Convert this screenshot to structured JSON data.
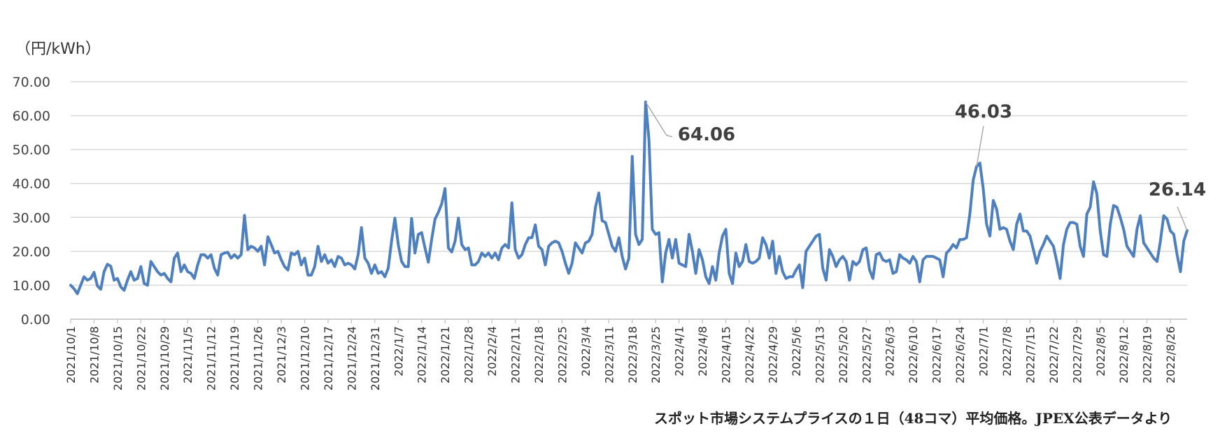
{
  "chart_data": {
    "type": "line",
    "title": "",
    "ylabel": "（円/kWh）",
    "xlabel": "",
    "ylim": [
      0,
      70
    ],
    "y_ticks": [
      "0.00",
      "10.00",
      "20.00",
      "30.00",
      "40.00",
      "50.00",
      "60.00",
      "70.00"
    ],
    "grid": true,
    "line_color": "#4e7fbf",
    "x_tick_labels": [
      "2021/10/1",
      "2021/10/8",
      "2021/10/15",
      "2021/10/22",
      "2021/10/29",
      "2021/11/5",
      "2021/11/12",
      "2021/11/19",
      "2021/11/26",
      "2021/12/3",
      "2021/12/10",
      "2021/12/17",
      "2021/12/24",
      "2021/12/31",
      "2022/1/7",
      "2022/1/14",
      "2022/1/21",
      "2022/1/28",
      "2022/2/4",
      "2022/2/11",
      "2022/2/18",
      "2022/2/25",
      "2022/3/4",
      "2022/3/11",
      "2022/3/18",
      "2022/3/25",
      "2022/4/1",
      "2022/4/8",
      "2022/4/15",
      "2022/4/22",
      "2022/4/29",
      "2022/5/6",
      "2022/5/13",
      "2022/5/20",
      "2022/5/27",
      "2022/6/3",
      "2022/6/10",
      "2022/6/17",
      "2022/6/24",
      "2022/7/1",
      "2022/7/8",
      "2022/7/15",
      "2022/7/22",
      "2022/7/29",
      "2022/8/5",
      "2022/8/12",
      "2022/8/19",
      "2022/8/26"
    ],
    "series": [
      {
        "start": "2021/10/1",
        "values": [
          10.0,
          9.0,
          7.5,
          10.0,
          12.5,
          11.5,
          12.0,
          13.8,
          9.8,
          8.8,
          14.0,
          16.2,
          15.6,
          11.5,
          12.0,
          9.5,
          8.5,
          11.5,
          14.0,
          11.5,
          12.0,
          15.5,
          10.5,
          10.0,
          17.0,
          15.5,
          14.0,
          13.0,
          13.5,
          12.0,
          11.0,
          18.0,
          19.5,
          14.0,
          16.0,
          14.0,
          13.5,
          12.0,
          16.0,
          19.0,
          19.0,
          18.0,
          19.0,
          15.0,
          13.0,
          19.0,
          19.5,
          19.7,
          18.0,
          19.0,
          18.0,
          19.0,
          30.6,
          20.5,
          21.5,
          21.0,
          20.0,
          21.5,
          16.0,
          24.3,
          22.0,
          19.5,
          20.0,
          17.5,
          15.5,
          14.5,
          19.5,
          19.0,
          20.0,
          16.0,
          18.0,
          13.0,
          13.0,
          15.5,
          21.5,
          17.0,
          19.0,
          16.5,
          17.5,
          15.5,
          18.5,
          18.0,
          16.0,
          16.5,
          16.0,
          14.8,
          19.0,
          27.0,
          18.0,
          16.5,
          13.5,
          16.0,
          13.5,
          14.0,
          12.5,
          15.0,
          23.0,
          29.8,
          22.0,
          17.0,
          15.5,
          15.5,
          29.7,
          19.5,
          25.0,
          25.5,
          21.0,
          16.8,
          23.5,
          29.5,
          31.5,
          34.0,
          38.5,
          21.0,
          19.8,
          23.0,
          29.8,
          22.0,
          20.5,
          21.0,
          16.0,
          16.0,
          17.0,
          19.5,
          18.5,
          19.5,
          18.0,
          19.5,
          17.5,
          21.0,
          22.0,
          21.0,
          34.3,
          20.5,
          18.0,
          19.0,
          22.0,
          24.0,
          24.0,
          27.8,
          21.5,
          20.5,
          16.0,
          21.5,
          22.5,
          23.0,
          22.5,
          20.0,
          16.5,
          13.5,
          16.5,
          22.5,
          21.0,
          19.5,
          22.5,
          23.0,
          25.0,
          33.0,
          37.2,
          29.0,
          28.5,
          25.0,
          21.5,
          20.0,
          24.0,
          18.5,
          14.8,
          18.0,
          48.0,
          25.0,
          22.0,
          23.5,
          64.06,
          53.0,
          26.5,
          25.0,
          25.5,
          11.0,
          19.5,
          23.5,
          18.0,
          23.5,
          16.5,
          16.0,
          15.5,
          25.0,
          20.0,
          13.5,
          20.5,
          17.5,
          12.5,
          10.5,
          15.5,
          11.5,
          19.5,
          24.5,
          26.5,
          13.5,
          10.5,
          19.5,
          15.5,
          17.0,
          22.0,
          17.0,
          16.5,
          17.0,
          18.0,
          24.0,
          22.0,
          18.0,
          23.0,
          13.5,
          18.5,
          14.0,
          12.0,
          12.5,
          12.5,
          14.5,
          16.0,
          9.3,
          20.0,
          21.5,
          23.0,
          24.5,
          25.0,
          15.0,
          11.5,
          20.5,
          18.5,
          15.5,
          17.5,
          18.5,
          17.0,
          11.5,
          17.0,
          16.0,
          17.0,
          20.5,
          21.0,
          14.5,
          12.0,
          19.0,
          19.5,
          17.5,
          17.0,
          17.5,
          13.5,
          14.0,
          19.0,
          18.0,
          17.5,
          16.5,
          18.5,
          17.0,
          11.0,
          17.5,
          18.5,
          18.5,
          18.5,
          18.0,
          17.5,
          12.5,
          19.5,
          20.5,
          22.0,
          21.0,
          23.5,
          23.5,
          24.0,
          31.0,
          41.0,
          45.0,
          46.03,
          38.5,
          28.0,
          24.5,
          35.0,
          32.5,
          26.5,
          27.0,
          26.5,
          23.0,
          20.5,
          28.0,
          31.0,
          26.0,
          26.0,
          24.5,
          20.5,
          16.5,
          20.0,
          22.0,
          24.5,
          23.0,
          21.5,
          17.0,
          12.0,
          22.0,
          26.5,
          28.5,
          28.5,
          28.0,
          21.5,
          18.5,
          31.0,
          33.0,
          40.5,
          37.0,
          26.0,
          19.0,
          18.5,
          28.0,
          33.5,
          33.0,
          30.0,
          26.5,
          21.5,
          20.0,
          18.5,
          26.5,
          30.5,
          22.5,
          21.0,
          19.5,
          18.0,
          17.0,
          23.0,
          30.5,
          29.5,
          26.0,
          25.0,
          19.0,
          14.0,
          23.0,
          26.14
        ]
      }
    ],
    "annotations": [
      {
        "label": "64.06",
        "date": "2022/3/22"
      },
      {
        "label": "46.03",
        "date": "2022/6/29"
      },
      {
        "label": "26.14",
        "date": "2022/8/31"
      }
    ]
  },
  "axis_title": "（円/kWh）",
  "source_note": "スポット市場システムプライスの１日（48コマ）平均価格。JPEX公表データより"
}
